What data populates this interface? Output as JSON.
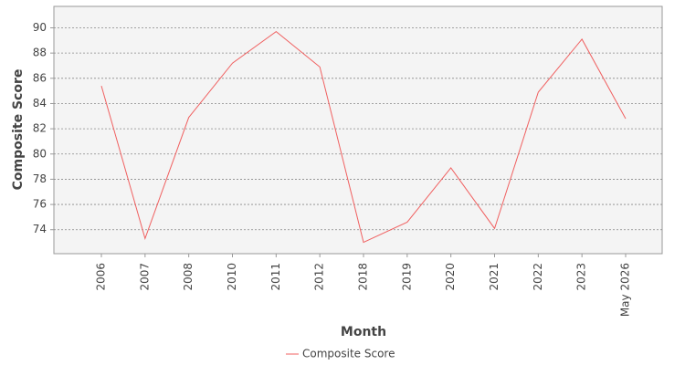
{
  "chart_data": {
    "type": "line",
    "x_label": "Month",
    "y_label": "Composite Score",
    "categories": [
      "2006",
      "2007",
      "2008",
      "2010",
      "2011",
      "2012",
      "2018",
      "2019",
      "2020",
      "2021",
      "2022",
      "2023",
      "May 2026"
    ],
    "series": [
      {
        "name": "Composite Score",
        "color": "#f06060",
        "values": [
          85.4,
          73.3,
          82.9,
          87.2,
          89.7,
          86.9,
          73.0,
          74.6,
          78.9,
          74.1,
          84.9,
          89.1,
          82.8
        ]
      }
    ],
    "ylim": [
      72.1,
      91.7
    ],
    "yticks": [
      74,
      76,
      78,
      80,
      82,
      84,
      86,
      88,
      90
    ],
    "grid": true
  }
}
